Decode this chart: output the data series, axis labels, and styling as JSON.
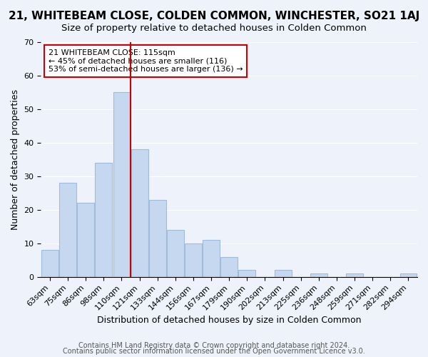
{
  "title": "21, WHITEBEAM CLOSE, COLDEN COMMON, WINCHESTER, SO21 1AJ",
  "subtitle": "Size of property relative to detached houses in Colden Common",
  "xlabel": "Distribution of detached houses by size in Colden Common",
  "ylabel": "Number of detached properties",
  "bar_color": "#c5d8f0",
  "bar_edge_color": "#a0bcd8",
  "categories": [
    "63sqm",
    "75sqm",
    "86sqm",
    "98sqm",
    "110sqm",
    "121sqm",
    "133sqm",
    "144sqm",
    "156sqm",
    "167sqm",
    "179sqm",
    "190sqm",
    "202sqm",
    "213sqm",
    "225sqm",
    "236sqm",
    "248sqm",
    "259sqm",
    "271sqm",
    "282sqm",
    "294sqm"
  ],
  "values": [
    8,
    28,
    22,
    34,
    55,
    38,
    23,
    14,
    10,
    11,
    6,
    2,
    0,
    2,
    0,
    1,
    0,
    1,
    0,
    0,
    1
  ],
  "ylim": [
    0,
    70
  ],
  "yticks": [
    0,
    10,
    20,
    30,
    40,
    50,
    60,
    70
  ],
  "vline_x": 4.5,
  "vline_color": "#cc0000",
  "annotation_title": "21 WHITEBEAM CLOSE: 115sqm",
  "annotation_line1": "← 45% of detached houses are smaller (116)",
  "annotation_line2": "53% of semi-detached houses are larger (136) →",
  "annotation_box_edge": "#cc0000",
  "footer1": "Contains HM Land Registry data © Crown copyright and database right 2024.",
  "footer2": "Contains public sector information licensed under the Open Government Licence v3.0.",
  "background_color": "#eef2fb",
  "plot_background": "#eef2fb",
  "grid_color": "#ffffff",
  "title_fontsize": 11,
  "subtitle_fontsize": 9.5,
  "axis_label_fontsize": 9,
  "tick_fontsize": 8,
  "footer_fontsize": 7
}
